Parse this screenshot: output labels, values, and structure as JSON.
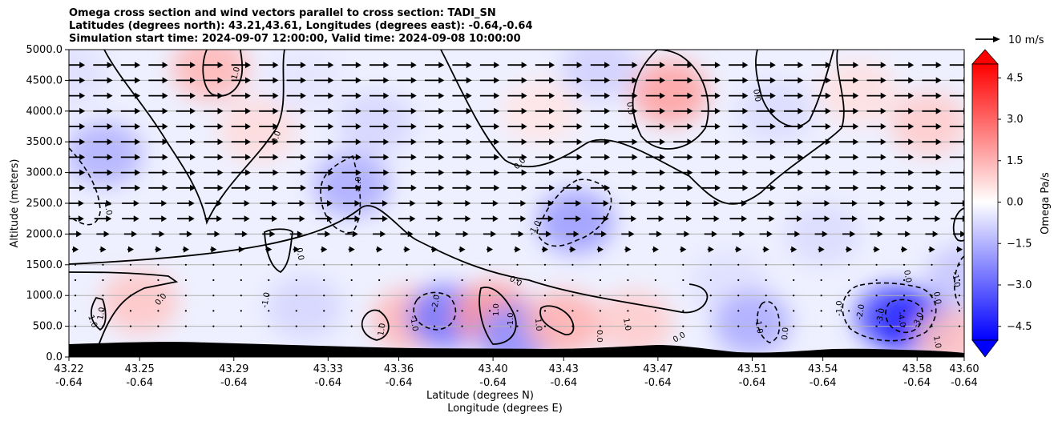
{
  "chart_data": {
    "type": "heatmap",
    "title_lines": [
      "Omega cross section and wind vectors parallel to cross section: TADI_SN",
      "Latitudes (degrees north): 43.21,43.61, Longitudes (degrees east): -0.64,-0.64",
      "Simulation start time: 2024-09-07 12:00:00, Valid time: 2024-09-08 10:00:00"
    ],
    "xlabel_lines": [
      "Latitude (degrees N)",
      "Longitude (degrees E)"
    ],
    "ylabel": "Altitude (meters)",
    "xticks": [
      {
        "lat": "43.22",
        "lon": "-0.64"
      },
      {
        "lat": "43.25",
        "lon": "-0.64"
      },
      {
        "lat": "43.29",
        "lon": "-0.64"
      },
      {
        "lat": "43.33",
        "lon": "-0.64"
      },
      {
        "lat": "43.36",
        "lon": "-0.64"
      },
      {
        "lat": "43.40",
        "lon": "-0.64"
      },
      {
        "lat": "43.43",
        "lon": "-0.64"
      },
      {
        "lat": "43.47",
        "lon": "-0.64"
      },
      {
        "lat": "43.51",
        "lon": "-0.64"
      },
      {
        "lat": "43.54",
        "lon": "-0.64"
      },
      {
        "lat": "43.58",
        "lon": "-0.64"
      },
      {
        "lat": "43.60",
        "lon": "-0.64"
      }
    ],
    "yticks": [
      "0.0",
      "500.0",
      "1000.0",
      "1500.0",
      "2000.0",
      "2500.0",
      "3000.0",
      "3500.0",
      "4000.0",
      "4500.0",
      "5000.0"
    ],
    "ylim": [
      0,
      5000
    ],
    "grid": "horizontal",
    "colorbar": {
      "label": "Omega Pa/s",
      "ticks": [
        "4.5",
        "3.0",
        "1.5",
        "0.0",
        "−1.5",
        "−3.0",
        "−4.5"
      ],
      "range": [
        -5,
        5
      ],
      "colors": {
        "negative": "#0000ff",
        "neutral": "#ffffff",
        "positive": "#ff0000"
      }
    },
    "quiver_key": "10 m/s",
    "contour_labels": [
      "1.0",
      "0.0",
      "-1.0",
      "-2.0",
      "-3.0",
      "-4.0"
    ],
    "cells": [
      {
        "x": 43.235,
        "y": 3300,
        "v": -1.5
      },
      {
        "x": 43.22,
        "y": 4600,
        "v": -0.6
      },
      {
        "x": 43.25,
        "y": 900,
        "v": 1.1
      },
      {
        "x": 43.28,
        "y": 4700,
        "v": 1.4
      },
      {
        "x": 43.3,
        "y": 3700,
        "v": 0.7
      },
      {
        "x": 43.32,
        "y": 4500,
        "v": -0.5
      },
      {
        "x": 43.34,
        "y": 2800,
        "v": -1.6
      },
      {
        "x": 43.32,
        "y": 800,
        "v": -0.8
      },
      {
        "x": 43.35,
        "y": 3800,
        "v": -0.8
      },
      {
        "x": 43.365,
        "y": 600,
        "v": 1.4
      },
      {
        "x": 43.38,
        "y": 650,
        "v": -2.6
      },
      {
        "x": 43.4,
        "y": 700,
        "v": 2.0
      },
      {
        "x": 43.41,
        "y": 350,
        "v": -2.2
      },
      {
        "x": 43.42,
        "y": 4000,
        "v": 0.5
      },
      {
        "x": 43.43,
        "y": 550,
        "v": 1.5
      },
      {
        "x": 43.435,
        "y": 2200,
        "v": -1.9
      },
      {
        "x": 43.445,
        "y": 4700,
        "v": -0.9
      },
      {
        "x": 43.46,
        "y": 550,
        "v": 1.0
      },
      {
        "x": 43.475,
        "y": 4300,
        "v": 1.8
      },
      {
        "x": 43.5,
        "y": 1200,
        "v": -0.6
      },
      {
        "x": 43.51,
        "y": 550,
        "v": -1.6
      },
      {
        "x": 43.52,
        "y": 4000,
        "v": -0.7
      },
      {
        "x": 43.54,
        "y": 2000,
        "v": -0.7
      },
      {
        "x": 43.555,
        "y": 4300,
        "v": 0.6
      },
      {
        "x": 43.57,
        "y": 650,
        "v": -3.4
      },
      {
        "x": 43.58,
        "y": 550,
        "v": -4.2
      },
      {
        "x": 43.585,
        "y": 3800,
        "v": 1.0
      },
      {
        "x": 43.595,
        "y": 300,
        "v": 1.2
      },
      {
        "x": 43.6,
        "y": 1300,
        "v": -1.1
      }
    ],
    "wind_rows": [
      {
        "y": 4750,
        "u": 9
      },
      {
        "y": 4500,
        "u": 9
      },
      {
        "y": 4250,
        "u": 9
      },
      {
        "y": 4000,
        "u": 9
      },
      {
        "y": 3750,
        "u": 9
      },
      {
        "y": 3500,
        "u": 9
      },
      {
        "y": 3250,
        "u": 9
      },
      {
        "y": 3000,
        "u": 9
      },
      {
        "y": 2750,
        "u": 9
      },
      {
        "y": 2500,
        "u": 8
      },
      {
        "y": 2250,
        "u": 8
      },
      {
        "y": 2000,
        "u": 6
      },
      {
        "y": 1750,
        "u": 3
      },
      {
        "y": 1500,
        "u": 1
      },
      {
        "y": 1250,
        "u": 0.3
      },
      {
        "y": 1000,
        "u": 0.2
      },
      {
        "y": 750,
        "u": 0.2
      },
      {
        "y": 500,
        "u": 0.2
      }
    ]
  }
}
